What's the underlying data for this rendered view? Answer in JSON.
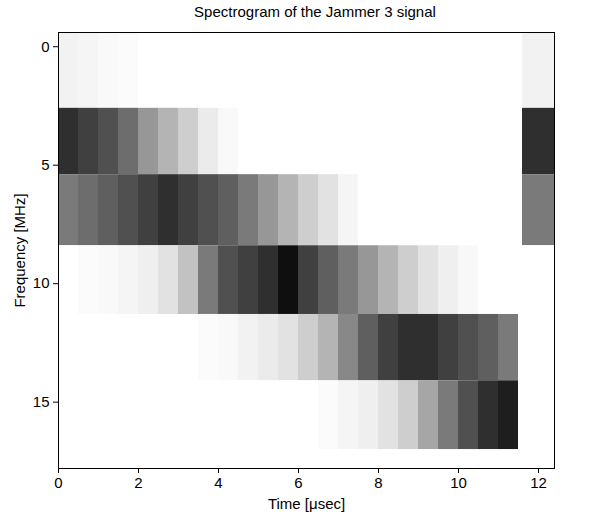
{
  "chart_data": {
    "type": "heatmap",
    "title": "Spectrogram of the Jammer 3 signal",
    "x_label": "Time [μsec]",
    "y_label": "Frequency [MHz]",
    "xlim": [
      0,
      12.4
    ],
    "ylim": [
      -0.6,
      17.8
    ],
    "xticks": [
      0,
      2,
      4,
      6,
      8,
      10,
      12
    ],
    "yticks": [
      0,
      5,
      10,
      15
    ],
    "time_edges": [
      0,
      0.5,
      1,
      1.5,
      2,
      2.5,
      3,
      3.5,
      4,
      4.5,
      5,
      5.5,
      6,
      6.5,
      7,
      7.5,
      8,
      8.5,
      9,
      9.5,
      10,
      10.5,
      11,
      11.5,
      11.6,
      12.4
    ],
    "frequency_edges": [
      -0.6,
      2.6,
      5.4,
      8.4,
      11.3,
      14.1,
      17.0
    ],
    "intensity_range": [
      0,
      1
    ],
    "intensity": [
      [
        0.1,
        0.08,
        0.05,
        0.03,
        0,
        0,
        0,
        0,
        0,
        0,
        0,
        0,
        0,
        0,
        0,
        0,
        0,
        0,
        0,
        0,
        0,
        0,
        0,
        0,
        0.1
      ],
      [
        0.85,
        0.8,
        0.75,
        0.65,
        0.5,
        0.4,
        0.3,
        0.15,
        0.05,
        0,
        0,
        0,
        0,
        0,
        0,
        0,
        0,
        0,
        0,
        0,
        0,
        0,
        0,
        0,
        0.85
      ],
      [
        0.6,
        0.65,
        0.7,
        0.75,
        0.8,
        0.85,
        0.8,
        0.75,
        0.7,
        0.6,
        0.5,
        0.4,
        0.3,
        0.2,
        0.08,
        0,
        0,
        0,
        0,
        0,
        0,
        0,
        0,
        0,
        0.6
      ],
      [
        0,
        0.03,
        0.05,
        0.08,
        0.12,
        0.2,
        0.35,
        0.6,
        0.75,
        0.8,
        0.85,
        0.95,
        0.8,
        0.7,
        0.6,
        0.5,
        0.4,
        0.3,
        0.2,
        0.12,
        0.06,
        0,
        0,
        0,
        0
      ],
      [
        0,
        0,
        0,
        0,
        0,
        0,
        0,
        0.03,
        0.05,
        0.1,
        0.15,
        0.2,
        0.3,
        0.4,
        0.55,
        0.7,
        0.8,
        0.85,
        0.85,
        0.8,
        0.75,
        0.7,
        0.6,
        0,
        0
      ],
      [
        0,
        0,
        0,
        0,
        0,
        0,
        0,
        0,
        0,
        0,
        0,
        0,
        0,
        0.03,
        0.08,
        0.12,
        0.2,
        0.3,
        0.45,
        0.6,
        0.75,
        0.85,
        0.9,
        0,
        0
      ]
    ]
  }
}
